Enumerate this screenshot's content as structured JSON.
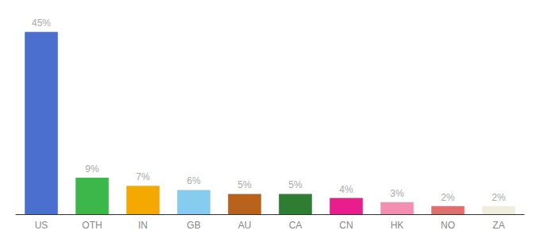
{
  "chart_data": {
    "type": "bar",
    "categories": [
      "US",
      "OTH",
      "IN",
      "GB",
      "AU",
      "CA",
      "CN",
      "HK",
      "NO",
      "ZA"
    ],
    "values": [
      45,
      9,
      7,
      6,
      5,
      5,
      4,
      3,
      2,
      2
    ],
    "value_labels": [
      "45%",
      "9%",
      "7%",
      "6%",
      "5%",
      "5%",
      "4%",
      "3%",
      "2%",
      "2%"
    ],
    "colors": [
      "#4a6fce",
      "#3cb84a",
      "#f5a800",
      "#85ccee",
      "#b8621b",
      "#2e7d32",
      "#e91e8c",
      "#f48fb1",
      "#e07070",
      "#f0eedc"
    ],
    "ylim": [
      0,
      48
    ],
    "data_labels": true,
    "tick_labels": "x",
    "grid": false
  }
}
